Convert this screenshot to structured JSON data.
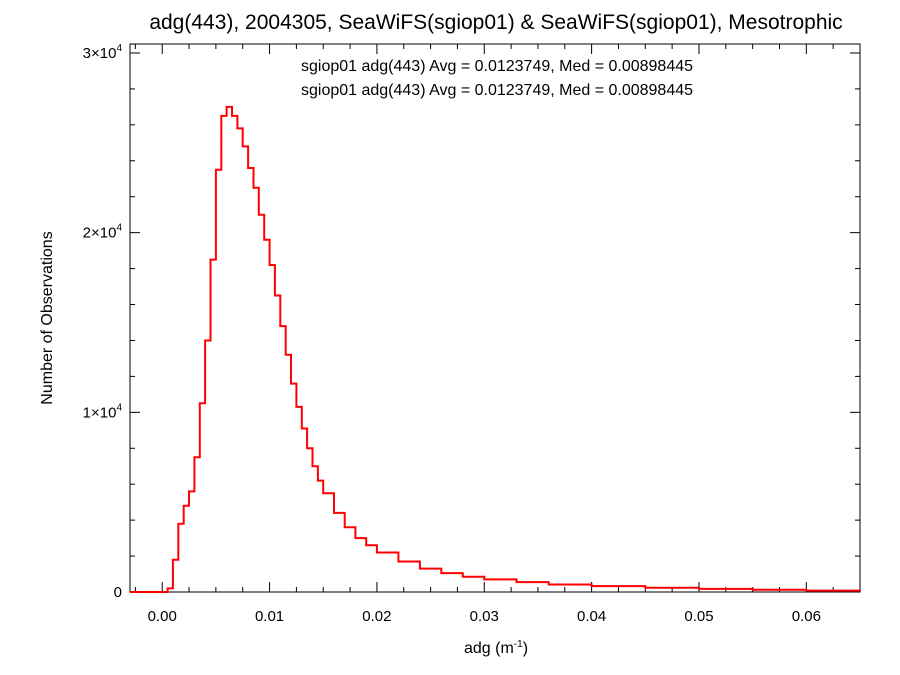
{
  "chart_data": {
    "type": "histogram",
    "title": "adg(443), 2004305, SeaWiFS(sgiop01) & SeaWiFS(sgiop01), Mesotrophic",
    "xlabel": "adg (m",
    "xlabel_sup": "-1",
    "xlabel_end": ")",
    "ylabel": "Number of Observations",
    "xlim": [
      -0.003,
      0.065
    ],
    "ylim": [
      0,
      30500
    ],
    "x_ticks": [
      {
        "value": 0.0,
        "label": "0.00"
      },
      {
        "value": 0.01,
        "label": "0.01"
      },
      {
        "value": 0.02,
        "label": "0.02"
      },
      {
        "value": 0.03,
        "label": "0.03"
      },
      {
        "value": 0.04,
        "label": "0.04"
      },
      {
        "value": 0.05,
        "label": "0.05"
      },
      {
        "value": 0.06,
        "label": "0.06"
      }
    ],
    "y_ticks": [
      {
        "value": 0,
        "mant": "0",
        "exp": ""
      },
      {
        "value": 10000,
        "mant": "1×10",
        "exp": "4"
      },
      {
        "value": 20000,
        "mant": "2×10",
        "exp": "4"
      },
      {
        "value": 30000,
        "mant": "3×10",
        "exp": "4"
      }
    ],
    "legend": [
      {
        "text": "sgiop01 adg(443) Avg = 0.0123749, Med = 0.00898445",
        "color": "#000000"
      },
      {
        "text": "sgiop01 adg(443) Avg = 0.0123749, Med = 0.00898445",
        "color": "#ff0000"
      }
    ],
    "series": [
      {
        "color": "#ff0000",
        "x": [
          -0.003,
          0.0005,
          0.001,
          0.0015,
          0.002,
          0.0025,
          0.003,
          0.0035,
          0.004,
          0.0045,
          0.005,
          0.0055,
          0.006,
          0.0065,
          0.007,
          0.0075,
          0.008,
          0.0085,
          0.009,
          0.0095,
          0.01,
          0.0105,
          0.011,
          0.0115,
          0.012,
          0.0125,
          0.013,
          0.0135,
          0.014,
          0.0145,
          0.015,
          0.016,
          0.017,
          0.018,
          0.019,
          0.02,
          0.022,
          0.024,
          0.026,
          0.028,
          0.03,
          0.033,
          0.036,
          0.04,
          0.045,
          0.05,
          0.055,
          0.06,
          0.065
        ],
        "y": [
          0,
          200,
          1800,
          3800,
          4800,
          5600,
          7500,
          10500,
          14000,
          18500,
          23500,
          26500,
          27000,
          26500,
          25800,
          24800,
          23600,
          22500,
          21000,
          19600,
          18200,
          16500,
          14800,
          13200,
          11600,
          10300,
          9100,
          8000,
          7000,
          6200,
          5500,
          4400,
          3600,
          3000,
          2600,
          2200,
          1700,
          1300,
          1050,
          850,
          700,
          550,
          420,
          330,
          240,
          170,
          120,
          80,
          50
        ]
      }
    ]
  }
}
